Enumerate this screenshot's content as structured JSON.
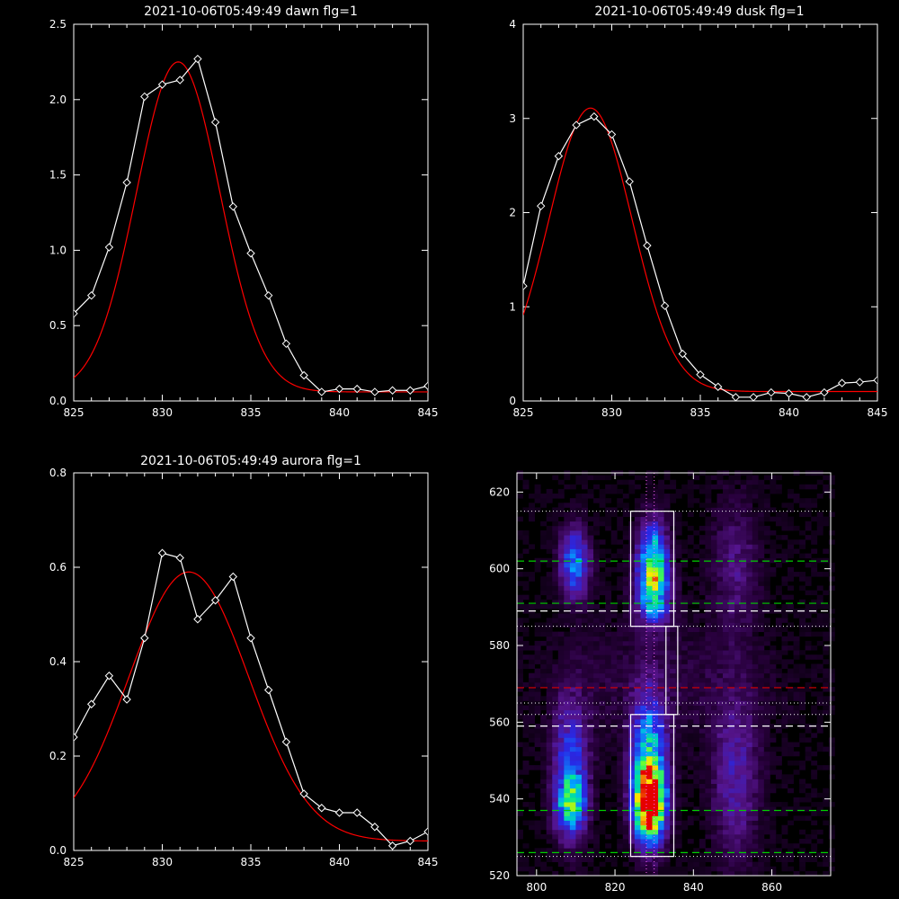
{
  "chart_data": [
    {
      "id": "dawn",
      "type": "line",
      "title": "2021-10-06T05:49:49 dawn flg=1",
      "xlim": [
        825,
        845
      ],
      "ylim": [
        0,
        2.5
      ],
      "xticks": [
        825,
        830,
        835,
        840,
        845
      ],
      "yticks": [
        0.0,
        0.5,
        1.0,
        1.5,
        2.0,
        2.5
      ],
      "ytick_labels": [
        "0.0",
        "0.5",
        "1.0",
        "1.5",
        "2.0",
        "2.5"
      ],
      "series": [
        {
          "style": "white-diamond-line",
          "color": "#ffffff",
          "x": [
            825,
            826,
            827,
            828,
            829,
            830,
            831,
            832,
            833,
            834,
            835,
            836,
            837,
            838,
            839,
            840,
            841,
            842,
            843,
            844,
            845
          ],
          "y": [
            0.58,
            0.7,
            1.02,
            1.45,
            2.02,
            2.1,
            2.13,
            2.27,
            1.85,
            1.29,
            0.98,
            0.7,
            0.38,
            0.17,
            0.06,
            0.08,
            0.08,
            0.06,
            0.07,
            0.07,
            0.1
          ]
        },
        {
          "style": "red-gaussian-fit",
          "color": "#ff0000",
          "fit": {
            "amplitude": 2.19,
            "center": 830.9,
            "sigma": 2.35,
            "baseline": 0.06
          }
        }
      ]
    },
    {
      "id": "dusk",
      "type": "line",
      "title": "2021-10-06T05:49:49 dusk flg=1",
      "xlim": [
        825,
        845
      ],
      "ylim": [
        0,
        4
      ],
      "xticks": [
        825,
        830,
        835,
        840,
        845
      ],
      "yticks": [
        0,
        1,
        2,
        3,
        4
      ],
      "ytick_labels": [
        "0",
        "1",
        "2",
        "3",
        "4"
      ],
      "series": [
        {
          "style": "white-diamond-line",
          "color": "#ffffff",
          "x": [
            825,
            826,
            827,
            828,
            829,
            830,
            831,
            832,
            833,
            834,
            835,
            836,
            837,
            838,
            839,
            840,
            841,
            842,
            843,
            844,
            845
          ],
          "y": [
            1.22,
            2.07,
            2.6,
            2.93,
            3.02,
            2.83,
            2.33,
            1.65,
            1.01,
            0.5,
            0.28,
            0.15,
            0.04,
            0.04,
            0.09,
            0.08,
            0.04,
            0.09,
            0.19,
            0.2,
            0.22
          ]
        },
        {
          "style": "red-gaussian-fit",
          "color": "#ff0000",
          "fit": {
            "amplitude": 3.01,
            "center": 828.8,
            "sigma": 2.35,
            "baseline": 0.1
          }
        }
      ]
    },
    {
      "id": "aurora",
      "type": "line",
      "title": "2021-10-06T05:49:49 aurora flg=1",
      "xlim": [
        825,
        845
      ],
      "ylim": [
        0,
        0.8
      ],
      "xticks": [
        825,
        830,
        835,
        840,
        845
      ],
      "yticks": [
        0.0,
        0.2,
        0.4,
        0.6,
        0.8
      ],
      "ytick_labels": [
        "0.0",
        "0.2",
        "0.4",
        "0.6",
        "0.8"
      ],
      "series": [
        {
          "style": "white-diamond-line",
          "color": "#ffffff",
          "x": [
            825,
            826,
            827,
            828,
            829,
            830,
            831,
            832,
            833,
            834,
            835,
            836,
            837,
            838,
            839,
            840,
            841,
            842,
            843,
            844,
            845
          ],
          "y": [
            0.24,
            0.31,
            0.37,
            0.32,
            0.45,
            0.63,
            0.62,
            0.49,
            0.53,
            0.58,
            0.45,
            0.34,
            0.23,
            0.12,
            0.09,
            0.08,
            0.08,
            0.05,
            0.01,
            0.02,
            0.04
          ]
        },
        {
          "style": "red-gaussian-fit",
          "color": "#ff0000",
          "fit": {
            "amplitude": 0.57,
            "center": 831.5,
            "sigma": 3.4,
            "baseline": 0.02
          }
        }
      ]
    },
    {
      "id": "spectrogram",
      "type": "heatmap",
      "title": "",
      "xlim": [
        795,
        875
      ],
      "ylim": [
        520,
        625
      ],
      "xticks": [
        800,
        820,
        840,
        860
      ],
      "yticks": [
        520,
        540,
        560,
        580,
        600,
        620
      ],
      "blobs": [
        {
          "x": 808,
          "y": 538,
          "sx": 2.5,
          "sy": 5,
          "amp": 0.45
        },
        {
          "x": 808,
          "y": 548,
          "sx": 3,
          "sy": 12,
          "amp": 0.32
        },
        {
          "x": 809,
          "y": 601,
          "sx": 2.5,
          "sy": 6,
          "amp": 0.42
        },
        {
          "x": 828,
          "y": 538,
          "sx": 2.5,
          "sy": 6,
          "amp": 1.0
        },
        {
          "x": 828,
          "y": 548,
          "sx": 3,
          "sy": 12,
          "amp": 0.55
        },
        {
          "x": 829,
          "y": 601,
          "sx": 2.5,
          "sy": 7,
          "amp": 0.62
        },
        {
          "x": 829,
          "y": 592,
          "sx": 3,
          "sy": 5,
          "amp": 0.35
        },
        {
          "x": 850,
          "y": 545,
          "sx": 4,
          "sy": 15,
          "amp": 0.2
        },
        {
          "x": 850,
          "y": 600,
          "sx": 4,
          "sy": 12,
          "amp": 0.14
        },
        {
          "x": 830,
          "y": 570,
          "sx": 20,
          "sy": 12,
          "amp": 0.06
        }
      ],
      "h_dashed": [
        {
          "y": 602,
          "color": "#00d000"
        },
        {
          "y": 591,
          "color": "#00d000"
        },
        {
          "y": 589,
          "color": "#ffffff"
        },
        {
          "y": 569,
          "color": "#dd0000"
        },
        {
          "y": 559,
          "color": "#ffffff"
        },
        {
          "y": 537,
          "color": "#00d000"
        },
        {
          "y": 526,
          "color": "#00d000"
        }
      ],
      "h_dotted": [
        615,
        585,
        565,
        562,
        525
      ],
      "v_dotted": [
        828,
        830
      ],
      "boxes": [
        {
          "x0": 824,
          "x1": 835,
          "y0": 585,
          "y1": 615
        },
        {
          "x0": 833,
          "x1": 836,
          "y0": 562,
          "y1": 585
        },
        {
          "x0": 824,
          "x1": 835,
          "y0": 525,
          "y1": 562
        }
      ]
    }
  ]
}
